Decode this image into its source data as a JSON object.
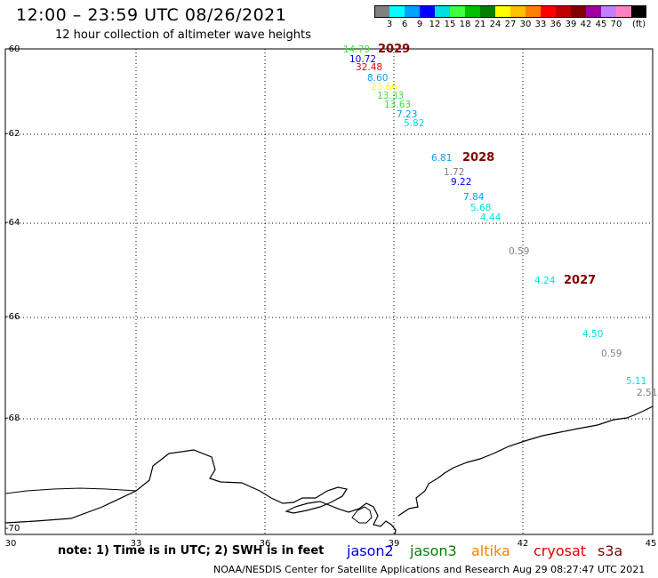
{
  "header": {
    "title": "12:00 – 23:59 UTC 08/26/2021",
    "subtitle": "12 hour collection of altimeter wave heights"
  },
  "color_scale": {
    "colors": [
      "#808080",
      "#00ffff",
      "#00a0ff",
      "#0000ff",
      "#00e0e0",
      "#40ff40",
      "#00c000",
      "#008000",
      "#ffff00",
      "#ffc000",
      "#ff8000",
      "#ff0000",
      "#c00000",
      "#800000",
      "#a000a0",
      "#c080ff",
      "#ff80c0",
      "#000000"
    ],
    "ticks": [
      "3",
      "6",
      "9",
      "12",
      "15",
      "18",
      "21",
      "24",
      "27",
      "30",
      "33",
      "36",
      "39",
      "42",
      "45",
      "70"
    ],
    "unit": "(ft)"
  },
  "axes": {
    "y_labels": [
      "-60",
      "-62",
      "-64",
      "-66",
      "-68",
      "-70"
    ],
    "x_labels": [
      "30",
      "33",
      "36",
      "39",
      "42",
      "45"
    ]
  },
  "wave_heights": [
    {
      "value": "14.79",
      "color": "#40e040"
    },
    {
      "value": "10.72",
      "color": "#0000ff"
    },
    {
      "value": "32.48",
      "color": "#e00000"
    },
    {
      "value": "8.60",
      "color": "#00a0ff"
    },
    {
      "value": "23.66",
      "color": "#ffff00"
    },
    {
      "value": "13.33",
      "color": "#40e040"
    },
    {
      "value": "13.63",
      "color": "#40e040"
    },
    {
      "value": "7.23",
      "color": "#00a0ff"
    },
    {
      "value": "5.82",
      "color": "#00e0e0"
    },
    {
      "value": "6.81",
      "color": "#00a0ff"
    },
    {
      "value": "1.72",
      "color": "#808080"
    },
    {
      "value": "9.22",
      "color": "#0000ff"
    },
    {
      "value": "7.84",
      "color": "#00a0ff"
    },
    {
      "value": "5.68",
      "color": "#00e0e0"
    },
    {
      "value": "4.44",
      "color": "#00e0e0"
    },
    {
      "value": "0.59",
      "color": "#808080"
    },
    {
      "value": "4.24",
      "color": "#00e0e0"
    },
    {
      "value": "4.50",
      "color": "#00e0e0"
    },
    {
      "value": "0.59",
      "color": "#808080"
    },
    {
      "value": "5.11",
      "color": "#00e0e0"
    },
    {
      "value": "2.51",
      "color": "#808080"
    }
  ],
  "pass_labels": [
    "2029",
    "2028",
    "2027"
  ],
  "footer": {
    "note": "note: 1) Time is in UTC; 2) SWH is in feet",
    "satellites": [
      {
        "name": "jason2",
        "color": "#0000cc"
      },
      {
        "name": "jason3",
        "color": "#008000"
      },
      {
        "name": "altika",
        "color": "#ff8000"
      },
      {
        "name": "cryosat",
        "color": "#e00000"
      },
      {
        "name": "s3a",
        "color": "#800000"
      }
    ],
    "credit": "NOAA/NESDIS Center for Satellite Applications and Research     Aug 29 08:27:47 UTC 2021"
  }
}
